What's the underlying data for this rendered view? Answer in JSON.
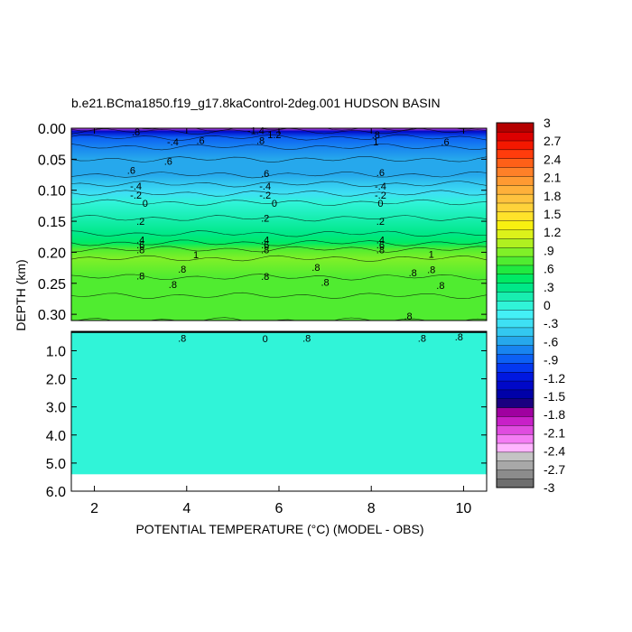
{
  "chart_data": {
    "type": "contour",
    "title": "b.e21.BCma1850.f19_g17.8kaControl-2deg.001 HUDSON BASIN",
    "xlabel": "POTENTIAL TEMPERATURE (°C) (MODEL - OBS)",
    "ylabel": "DEPTH (km)",
    "xlim": [
      1.5,
      10.5
    ],
    "x_ticks": [
      2,
      4,
      6,
      8,
      10
    ],
    "x_tick_labels": [
      "2",
      "4",
      "6",
      "8",
      "10"
    ],
    "upper_panel": {
      "ylim": [
        0.0,
        0.31
      ],
      "y_ticks": [
        0.0,
        0.05,
        0.1,
        0.15,
        0.2,
        0.25,
        0.3
      ],
      "y_tick_labels": [
        "0.00",
        "0.05",
        "0.10",
        "0.15",
        "0.20",
        "0.25",
        "0.30"
      ]
    },
    "lower_panel": {
      "ylim": [
        0.31,
        6.0
      ],
      "y_ticks": [
        1.0,
        2.0,
        3.0,
        4.0,
        5.0,
        6.0
      ],
      "y_tick_labels": [
        "1.0",
        "2.0",
        "3.0",
        "4.0",
        "5.0",
        "6.0"
      ],
      "bottom_depth": 5.4,
      "fill_value": 0.0
    },
    "depth_profile": [
      {
        "depth": 0.0,
        "value": -2.0
      },
      {
        "depth": 0.005,
        "value": -1.3
      },
      {
        "depth": 0.015,
        "value": -0.9
      },
      {
        "depth": 0.03,
        "value": -0.7
      },
      {
        "depth": 0.05,
        "value": -0.6
      },
      {
        "depth": 0.075,
        "value": -0.55
      },
      {
        "depth": 0.09,
        "value": -0.4
      },
      {
        "depth": 0.105,
        "value": -0.2
      },
      {
        "depth": 0.12,
        "value": 0.0
      },
      {
        "depth": 0.145,
        "value": 0.2
      },
      {
        "depth": 0.17,
        "value": 0.35
      },
      {
        "depth": 0.185,
        "value": 0.5
      },
      {
        "depth": 0.195,
        "value": 0.8
      },
      {
        "depth": 0.21,
        "value": 0.95
      },
      {
        "depth": 0.24,
        "value": 0.85
      },
      {
        "depth": 0.27,
        "value": 0.8
      },
      {
        "depth": 0.31,
        "value": 0.75
      }
    ],
    "contour_labels": [
      {
        "text": ".8",
        "x": 2.9,
        "y": 0.006
      },
      {
        "text": "-.4",
        "x": 3.7,
        "y": 0.022
      },
      {
        "text": ".6",
        "x": 4.3,
        "y": 0.02
      },
      {
        "text": "-1.4",
        "x": 5.5,
        "y": 0.004
      },
      {
        "text": "1.2",
        "x": 5.9,
        "y": 0.01
      },
      {
        "text": ".8",
        "x": 5.6,
        "y": 0.02
      },
      {
        "text": ".8",
        "x": 8.1,
        "y": 0.01
      },
      {
        "text": "1",
        "x": 8.1,
        "y": 0.022
      },
      {
        "text": ".6",
        "x": 9.6,
        "y": 0.022
      },
      {
        "text": ".6",
        "x": 3.6,
        "y": 0.053
      },
      {
        "text": ".6",
        "x": 2.8,
        "y": 0.068
      },
      {
        "text": ".6",
        "x": 5.7,
        "y": 0.073
      },
      {
        "text": ".6",
        "x": 8.2,
        "y": 0.071
      },
      {
        "text": "-.4",
        "x": 2.9,
        "y": 0.093
      },
      {
        "text": "-.4",
        "x": 5.7,
        "y": 0.093
      },
      {
        "text": "-.4",
        "x": 8.2,
        "y": 0.093
      },
      {
        "text": "-.2",
        "x": 2.9,
        "y": 0.108
      },
      {
        "text": "-.2",
        "x": 5.7,
        "y": 0.108
      },
      {
        "text": "-.2",
        "x": 8.2,
        "y": 0.108
      },
      {
        "text": "0",
        "x": 3.1,
        "y": 0.121
      },
      {
        "text": "0",
        "x": 5.9,
        "y": 0.121
      },
      {
        "text": "0",
        "x": 8.2,
        "y": 0.121
      },
      {
        "text": ".2",
        "x": 3.0,
        "y": 0.15
      },
      {
        "text": ".2",
        "x": 5.7,
        "y": 0.145
      },
      {
        "text": ".2",
        "x": 8.2,
        "y": 0.15
      },
      {
        "text": ".4",
        "x": 3.0,
        "y": 0.18
      },
      {
        "text": ".4",
        "x": 5.7,
        "y": 0.18
      },
      {
        "text": ".4",
        "x": 8.2,
        "y": 0.18
      },
      {
        "text": ".6",
        "x": 3.0,
        "y": 0.188
      },
      {
        "text": ".6",
        "x": 5.7,
        "y": 0.188
      },
      {
        "text": ".6",
        "x": 8.2,
        "y": 0.188
      },
      {
        "text": ".8",
        "x": 3.0,
        "y": 0.196
      },
      {
        "text": ".8",
        "x": 5.7,
        "y": 0.196
      },
      {
        "text": ".8",
        "x": 8.2,
        "y": 0.196
      },
      {
        "text": "1",
        "x": 4.2,
        "y": 0.204
      },
      {
        "text": "1",
        "x": 9.3,
        "y": 0.203
      },
      {
        "text": ".8",
        "x": 3.9,
        "y": 0.227
      },
      {
        "text": ".8",
        "x": 6.8,
        "y": 0.224
      },
      {
        "text": ".8",
        "x": 9.3,
        "y": 0.228
      },
      {
        "text": ".8",
        "x": 5.7,
        "y": 0.239
      },
      {
        "text": ".8",
        "x": 8.9,
        "y": 0.233
      },
      {
        "text": ".8",
        "x": 3.0,
        "y": 0.238
      },
      {
        "text": ".8",
        "x": 3.7,
        "y": 0.252
      },
      {
        "text": ".8",
        "x": 7.0,
        "y": 0.248
      },
      {
        "text": ".8",
        "x": 9.5,
        "y": 0.253
      },
      {
        "text": ".8",
        "x": 8.8,
        "y": 0.303
      },
      {
        "text": ".8",
        "x": 3.9,
        "y": 0.545
      },
      {
        "text": "0",
        "x": 5.7,
        "y": 0.56
      },
      {
        "text": ".8",
        "x": 6.6,
        "y": 0.545
      },
      {
        "text": ".8",
        "x": 9.1,
        "y": 0.545
      },
      {
        "text": ".8",
        "x": 9.9,
        "y": 0.51
      }
    ],
    "colorbar": {
      "min": -3.0,
      "max": 3.0,
      "step": 0.15,
      "tick_labels": [
        "3",
        "2.7",
        "2.4",
        "2.1",
        "1.8",
        "1.5",
        "1.2",
        ".9",
        ".6",
        ".3",
        "0",
        "-.3",
        "-.6",
        "-.9",
        "-1.2",
        "-1.5",
        "-1.8",
        "-2.1",
        "-2.4",
        "-2.7",
        "-3"
      ],
      "colors": [
        "#6e6e6e",
        "#8c8c8c",
        "#a8a8a8",
        "#c4c4c4",
        "#ffb4ff",
        "#f47cf4",
        "#e04ce0",
        "#c820c8",
        "#a000a0",
        "#1a0080",
        "#0000a8",
        "#0008c8",
        "#0018e0",
        "#0438f0",
        "#0c60f4",
        "#1884f0",
        "#26a8ec",
        "#33c8f0",
        "#3ee0f4",
        "#44f0f6",
        "#30f4d8",
        "#18eeb0",
        "#00e888",
        "#00ea64",
        "#20ea40",
        "#50ec30",
        "#80f028",
        "#b0f020",
        "#dcf21a",
        "#f8f010",
        "#ffe22a",
        "#ffd23a",
        "#ffc23e",
        "#ffb03a",
        "#ff9a32",
        "#ff8028",
        "#ff6018",
        "#ff3c0c",
        "#f41800",
        "#dc0000",
        "#b40000"
      ]
    }
  }
}
